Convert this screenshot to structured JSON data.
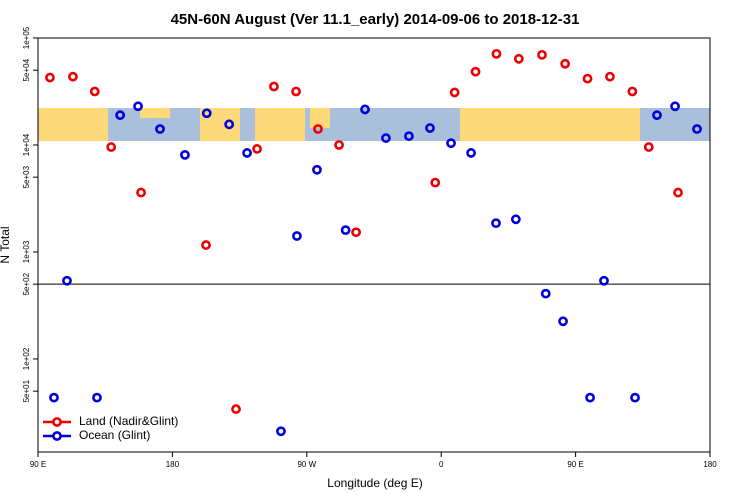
{
  "chart_data": {
    "type": "scatter",
    "title": "45N-60N August (Ver 11.1_early)   2014-09-06 to 2018-12-31",
    "x_label": "Longitude (deg E)",
    "y_label": "N Total",
    "log_y": true,
    "legend": "bottom-left",
    "hline": 500,
    "xlim": [
      90,
      540
    ],
    "ylim": [
      13.5,
      100000
    ],
    "xticks": [
      {
        "value": 90,
        "label": "90 E"
      },
      180,
      {
        "value": 270,
        "label": "90 W"
      },
      {
        "value": 360,
        "label": "0"
      },
      {
        "value": 450,
        "label": "90 E"
      },
      {
        "value": 540,
        "label": "180"
      }
    ],
    "yticks": [
      {
        "value": 100000,
        "label": "1e+05"
      },
      {
        "value": 50000,
        "label": "5e+04"
      },
      {
        "value": 10000,
        "label": "1e+04"
      },
      {
        "value": 5000,
        "label": "5e+03"
      },
      {
        "value": 1000,
        "label": "1e+03"
      },
      {
        "value": 500,
        "label": "5e+02"
      },
      {
        "value": 100,
        "label": "1e+02"
      },
      {
        "value": 50,
        "label": "5e+01"
      }
    ],
    "series": [
      {
        "name": "Land (Nadir&Glint)",
        "color": "#ee0000",
        "x": [
          98,
          113.4,
          128,
          139,
          159,
          202.5,
          222.6,
          236.7,
          248,
          262.8,
          277.5,
          291.6,
          303,
          356,
          369,
          383,
          397,
          412,
          427.5,
          443,
          458,
          473,
          488,
          499,
          518.6
        ],
        "values": [
          42700,
          43500,
          31600,
          9570,
          3590,
          1160,
          34,
          9190,
          35200,
          31600,
          14100,
          10000,
          1530,
          4450,
          31000,
          48400,
          71100,
          63900,
          69600,
          57400,
          41700,
          43500,
          31600,
          9570,
          3590
        ]
      },
      {
        "name": "Ocean (Glint)",
        "color": "#0000dd",
        "x": [
          100.7,
          109.4,
          129.5,
          145,
          157,
          171.7,
          188.4,
          203,
          218,
          230,
          252.7,
          263.4,
          276.8,
          296,
          309,
          323,
          338.4,
          352.5,
          366.6,
          380,
          396.7,
          410,
          430,
          441.6,
          459.7,
          469,
          489.8,
          504.5,
          516.6,
          531.3
        ],
        "values": [
          43.5,
          538,
          43.5,
          19000,
          23000,
          14100,
          8080,
          19800,
          15600,
          8430,
          21.1,
          1410,
          5870,
          1600,
          21500,
          11600,
          12100,
          14400,
          10400,
          8430,
          1860,
          2020,
          408,
          225,
          43.5,
          538,
          43.5,
          19000,
          23000,
          14100
        ]
      }
    ]
  }
}
